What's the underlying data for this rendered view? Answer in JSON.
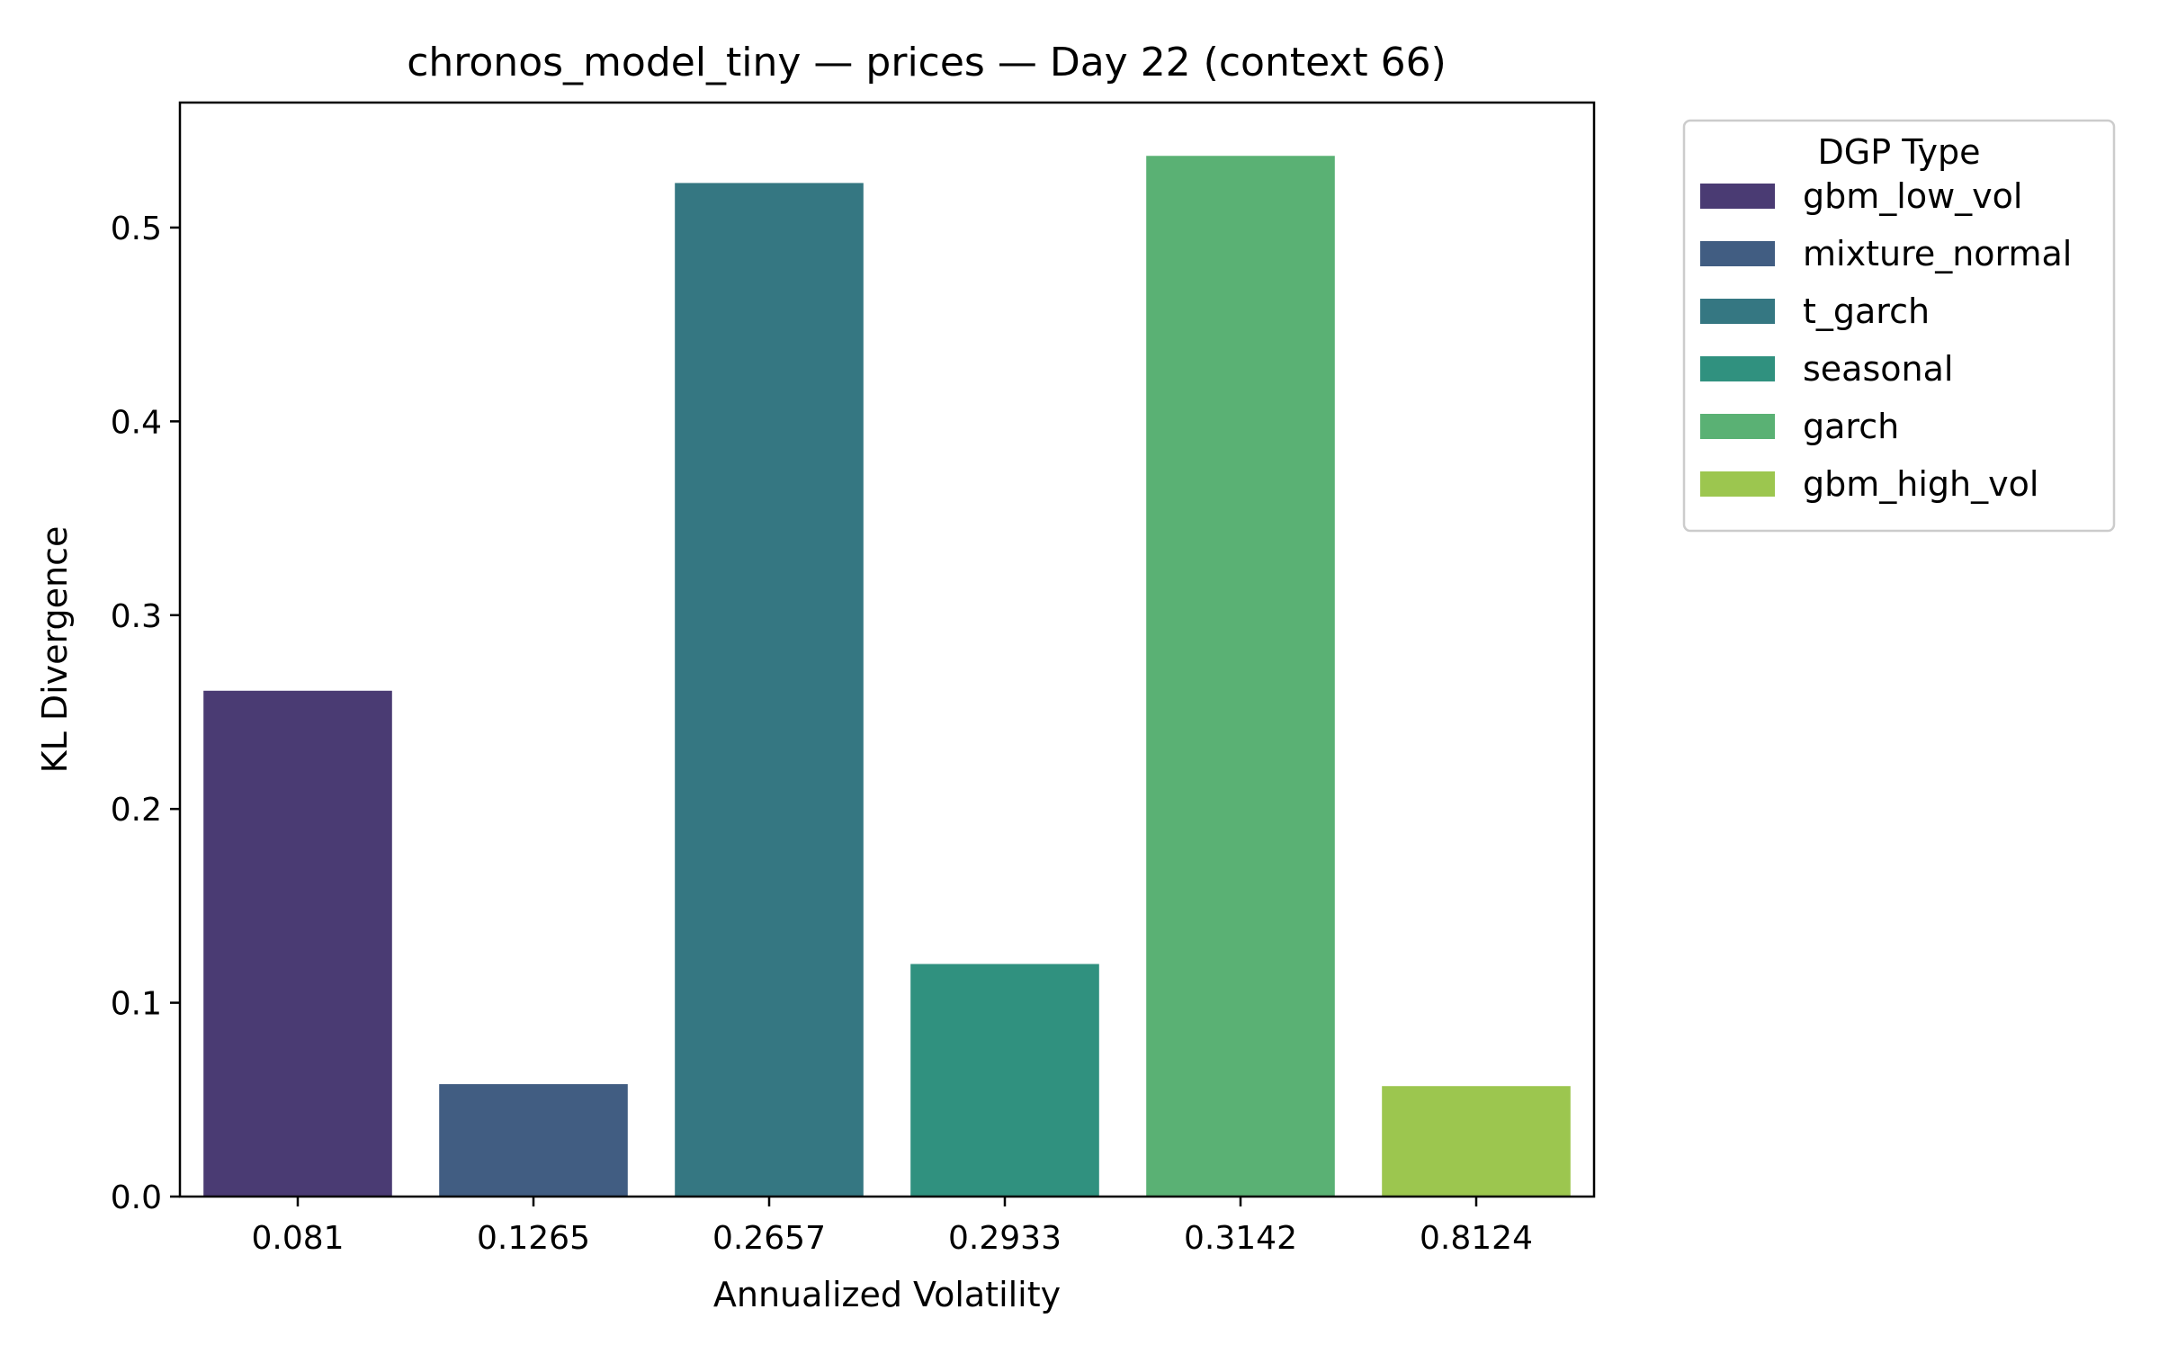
{
  "chart_data": {
    "type": "bar",
    "title": "chronos_model_tiny — prices — Day 22 (context 66)",
    "xlabel": "Annualized Volatility",
    "ylabel": "KL Divergence",
    "categories": [
      "0.081",
      "0.1265",
      "0.2657",
      "0.2933",
      "0.3142",
      "0.8124"
    ],
    "values": [
      0.261,
      0.058,
      0.523,
      0.12,
      0.537,
      0.057
    ],
    "series_labels": [
      "gbm_low_vol",
      "mixture_normal",
      "t_garch",
      "seasonal",
      "garch",
      "gbm_high_vol"
    ],
    "colors": [
      "#4a3b73",
      "#415d82",
      "#357782",
      "#30917f",
      "#5ab174",
      "#9cc64f"
    ],
    "ylim": [
      0,
      0.5645
    ],
    "yticks": [
      "0.0",
      "0.1",
      "0.2",
      "0.3",
      "0.4",
      "0.5"
    ],
    "ytick_values": [
      0,
      0.1,
      0.2,
      0.3,
      0.4,
      0.5
    ],
    "grid": false,
    "legend": {
      "title": "DGP Type",
      "placement": "outside-right-top",
      "entries": [
        "gbm_low_vol",
        "mixture_normal",
        "t_garch",
        "seasonal",
        "garch",
        "gbm_high_vol"
      ]
    }
  }
}
